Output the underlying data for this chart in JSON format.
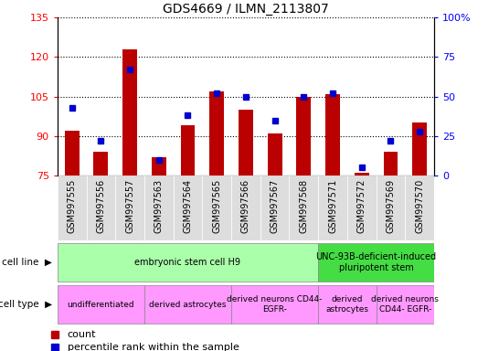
{
  "title": "GDS4669 / ILMN_2113807",
  "samples": [
    "GSM997555",
    "GSM997556",
    "GSM997557",
    "GSM997563",
    "GSM997564",
    "GSM997565",
    "GSM997566",
    "GSM997567",
    "GSM997568",
    "GSM997571",
    "GSM997572",
    "GSM997569",
    "GSM997570"
  ],
  "counts": [
    92,
    84,
    123,
    82,
    94,
    107,
    100,
    91,
    105,
    106,
    76,
    84,
    95
  ],
  "percentiles": [
    43,
    22,
    67,
    10,
    38,
    52,
    50,
    35,
    50,
    52,
    5,
    22,
    28
  ],
  "ylim_left": [
    75,
    135
  ],
  "ylim_right": [
    0,
    100
  ],
  "left_ticks": [
    75,
    90,
    105,
    120,
    135
  ],
  "right_ticks": [
    0,
    25,
    50,
    75,
    100
  ],
  "right_tick_labels": [
    "0",
    "25",
    "50",
    "75",
    "100%"
  ],
  "bar_color": "#bb0000",
  "dot_color": "#0000cc",
  "bar_bottom": 75,
  "cell_line_groups": [
    {
      "label": "embryonic stem cell H9",
      "start": 0,
      "end": 9,
      "color": "#aaffaa"
    },
    {
      "label": "UNC-93B-deficient-induced\npluripotent stem",
      "start": 9,
      "end": 13,
      "color": "#44dd44"
    }
  ],
  "cell_type_groups": [
    {
      "label": "undifferentiated",
      "start": 0,
      "end": 3,
      "color": "#ff99ff"
    },
    {
      "label": "derived astrocytes",
      "start": 3,
      "end": 6,
      "color": "#ff99ff"
    },
    {
      "label": "derived neurons CD44-\nEGFR-",
      "start": 6,
      "end": 9,
      "color": "#ff99ff"
    },
    {
      "label": "derived\nastrocytes",
      "start": 9,
      "end": 11,
      "color": "#ff99ff"
    },
    {
      "label": "derived neurons\nCD44- EGFR-",
      "start": 11,
      "end": 13,
      "color": "#ff99ff"
    }
  ],
  "legend_items": [
    {
      "label": "count",
      "color": "#bb0000"
    },
    {
      "label": "percentile rank within the sample",
      "color": "#0000cc"
    }
  ]
}
